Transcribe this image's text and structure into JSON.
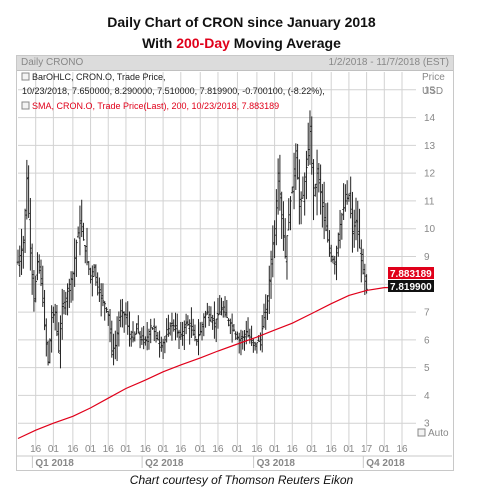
{
  "title": {
    "line1": "Daily Chart of CRON since January 2018",
    "line2_prefix": "With ",
    "line2_highlight": "200-Day",
    "line2_suffix": " Moving Average"
  },
  "panel": {
    "name": "Daily CRONO",
    "date_range": "1/2/2018 - 11/7/2018 (EST)"
  },
  "legend": {
    "ohlc_line1": "BarOHLC, CRON.O, Trade Price,",
    "ohlc_line2": "10/23/2018, 7.650000, 8.290000, 7.510000, 7.819900, -0.700100, (-8.22%),",
    "sma_line": "SMA, CRON.O, Trade Price(Last),  200,  10/23/2018, 7.883189"
  },
  "y_axis": {
    "header": "Price",
    "unit": "USD",
    "auto_label": "Auto"
  },
  "price_tags": {
    "sma": "7.883189",
    "close": "7.819900"
  },
  "caption": "Chart courtesy of Thomson Reuters Eikon",
  "chart_data": {
    "type": "bar-ohlc",
    "ylim": [
      2,
      16
    ],
    "y_ticks": [
      3,
      4,
      5,
      6,
      7,
      8,
      9,
      10,
      11,
      12,
      13,
      14,
      15
    ],
    "x_days_range": [
      0,
      217
    ],
    "x_tick_labels": [
      {
        "day": 10,
        "label": "16"
      },
      {
        "day": 20,
        "label": "01"
      },
      {
        "day": 31,
        "label": "16"
      },
      {
        "day": 41,
        "label": "01"
      },
      {
        "day": 51,
        "label": "16"
      },
      {
        "day": 61,
        "label": "01"
      },
      {
        "day": 72,
        "label": "16"
      },
      {
        "day": 82,
        "label": "01"
      },
      {
        "day": 92,
        "label": "16"
      },
      {
        "day": 103,
        "label": "01"
      },
      {
        "day": 113,
        "label": "16"
      },
      {
        "day": 124,
        "label": "01"
      },
      {
        "day": 135,
        "label": "16"
      },
      {
        "day": 145,
        "label": "01"
      },
      {
        "day": 155,
        "label": "16"
      },
      {
        "day": 166,
        "label": "01"
      },
      {
        "day": 177,
        "label": "16"
      },
      {
        "day": 187,
        "label": "01"
      },
      {
        "day": 197,
        "label": "17"
      },
      {
        "day": 207,
        "label": "01"
      },
      {
        "day": 217,
        "label": "16"
      }
    ],
    "quarter_labels": [
      {
        "day": 20,
        "label": "Q1 2018"
      },
      {
        "day": 82,
        "label": "Q2 2018"
      },
      {
        "day": 145,
        "label": "Q3 2018"
      },
      {
        "day": 207,
        "label": "Q4 2018"
      }
    ],
    "series": [
      {
        "name": "SMA 200",
        "color": "#e0001a",
        "points": [
          [
            0,
            2.45
          ],
          [
            10,
            2.75
          ],
          [
            20,
            3.0
          ],
          [
            31,
            3.25
          ],
          [
            41,
            3.55
          ],
          [
            51,
            3.9
          ],
          [
            61,
            4.25
          ],
          [
            72,
            4.55
          ],
          [
            82,
            4.85
          ],
          [
            92,
            5.1
          ],
          [
            103,
            5.35
          ],
          [
            113,
            5.6
          ],
          [
            124,
            5.85
          ],
          [
            135,
            6.1
          ],
          [
            145,
            6.35
          ],
          [
            155,
            6.6
          ],
          [
            166,
            6.95
          ],
          [
            177,
            7.3
          ],
          [
            187,
            7.6
          ],
          [
            197,
            7.78
          ],
          [
            207,
            7.88
          ],
          [
            212,
            7.883
          ]
        ]
      },
      {
        "name": "CRON.O OHLC",
        "color": "#222222",
        "close_path": [
          [
            0,
            8.8
          ],
          [
            3,
            9.5
          ],
          [
            5,
            11.8
          ],
          [
            7,
            9.3
          ],
          [
            9,
            7.4
          ],
          [
            11,
            8.8
          ],
          [
            13,
            8.2
          ],
          [
            15,
            6.5
          ],
          [
            17,
            5.2
          ],
          [
            19,
            6.8
          ],
          [
            21,
            7.0
          ],
          [
            23,
            5.6
          ],
          [
            25,
            7.2
          ],
          [
            27,
            7.5
          ],
          [
            29,
            8.0
          ],
          [
            31,
            8.4
          ],
          [
            33,
            9.5
          ],
          [
            35,
            10.2
          ],
          [
            37,
            9.6
          ],
          [
            39,
            8.8
          ],
          [
            41,
            8.3
          ],
          [
            43,
            8.6
          ],
          [
            45,
            7.9
          ],
          [
            47,
            7.5
          ],
          [
            49,
            7.3
          ],
          [
            51,
            6.9
          ],
          [
            53,
            5.6
          ],
          [
            55,
            5.8
          ],
          [
            57,
            6.7
          ],
          [
            59,
            7.0
          ],
          [
            61,
            6.8
          ],
          [
            63,
            6.2
          ],
          [
            65,
            6.0
          ],
          [
            67,
            6.4
          ],
          [
            69,
            6.1
          ],
          [
            71,
            5.9
          ],
          [
            73,
            6.1
          ],
          [
            75,
            6.5
          ],
          [
            77,
            6.3
          ],
          [
            79,
            6.0
          ],
          [
            81,
            5.8
          ],
          [
            83,
            6.0
          ],
          [
            85,
            6.4
          ],
          [
            87,
            6.6
          ],
          [
            89,
            6.4
          ],
          [
            91,
            6.1
          ],
          [
            93,
            6.3
          ],
          [
            95,
            6.6
          ],
          [
            97,
            6.5
          ],
          [
            99,
            6.2
          ],
          [
            101,
            6.0
          ],
          [
            103,
            6.3
          ],
          [
            105,
            6.8
          ],
          [
            107,
            7.0
          ],
          [
            109,
            6.8
          ],
          [
            111,
            6.6
          ],
          [
            113,
            6.9
          ],
          [
            115,
            7.1
          ],
          [
            117,
            6.9
          ],
          [
            119,
            6.7
          ],
          [
            121,
            6.5
          ],
          [
            123,
            6.2
          ],
          [
            125,
            6.0
          ],
          [
            127,
            6.1
          ],
          [
            129,
            6.3
          ],
          [
            131,
            6.0
          ],
          [
            133,
            5.8
          ],
          [
            135,
            5.9
          ],
          [
            137,
            6.0
          ],
          [
            139,
            6.8
          ],
          [
            141,
            7.4
          ],
          [
            143,
            8.9
          ],
          [
            145,
            10.0
          ],
          [
            147,
            12.0
          ],
          [
            149,
            10.5
          ],
          [
            151,
            9.0
          ],
          [
            153,
            10.5
          ],
          [
            155,
            11.5
          ],
          [
            157,
            12.8
          ],
          [
            159,
            10.8
          ],
          [
            161,
            11.2
          ],
          [
            163,
            12.2
          ],
          [
            165,
            13.5
          ],
          [
            167,
            11.2
          ],
          [
            169,
            12.0
          ],
          [
            171,
            11.3
          ],
          [
            173,
            10.3
          ],
          [
            175,
            9.6
          ],
          [
            177,
            9.0
          ],
          [
            179,
            8.8
          ],
          [
            181,
            9.8
          ],
          [
            183,
            10.5
          ],
          [
            185,
            11.0
          ],
          [
            187,
            11.2
          ],
          [
            189,
            9.9
          ],
          [
            191,
            10.3
          ],
          [
            193,
            9.3
          ],
          [
            195,
            8.4
          ],
          [
            197,
            7.82
          ]
        ]
      }
    ]
  }
}
